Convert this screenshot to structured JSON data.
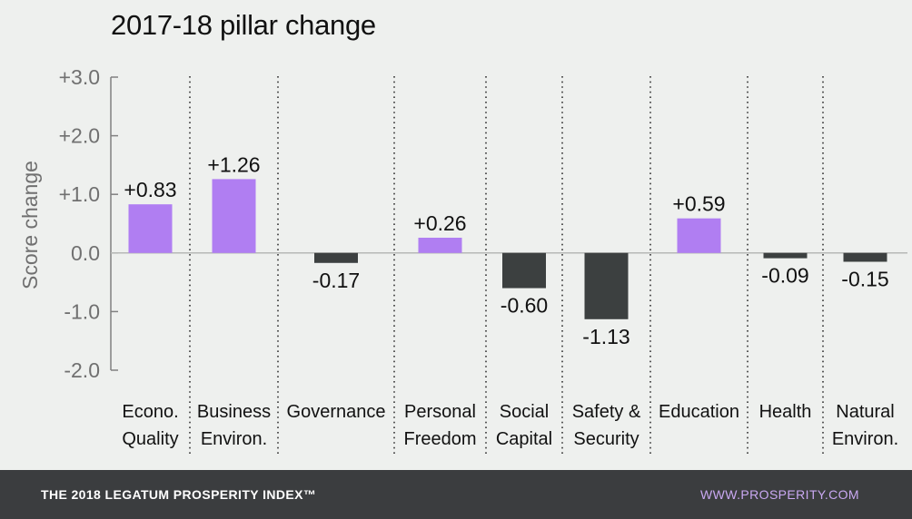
{
  "chart_data": {
    "type": "bar",
    "title": "2017-18 pillar change",
    "ylabel": "Score change",
    "ylim": [
      -2.0,
      3.0
    ],
    "yticks": [
      "+3.0",
      "+2.0",
      "+1.0",
      "0.0",
      "-1.0",
      "-2.0"
    ],
    "yticks_values": [
      3.0,
      2.0,
      1.0,
      0.0,
      -1.0,
      -2.0
    ],
    "categories": [
      [
        "Econo.",
        "Quality"
      ],
      [
        "Business",
        "Environ."
      ],
      [
        "Governance"
      ],
      [
        "Personal",
        "Freedom"
      ],
      [
        "Social",
        "Capital"
      ],
      [
        "Safety &",
        "Security"
      ],
      [
        "Education"
      ],
      [
        "Health"
      ],
      [
        "Natural",
        "Environ."
      ]
    ],
    "values": [
      0.83,
      1.26,
      -0.17,
      0.26,
      -0.6,
      -1.13,
      0.59,
      -0.09,
      -0.15
    ],
    "value_labels": [
      "+0.83",
      "+1.26",
      "-0.17",
      "+0.26",
      "-0.60",
      "-1.13",
      "+0.59",
      "-0.09",
      "-0.15"
    ],
    "colors": {
      "positive": "#b07ef2",
      "negative": "#3c4040"
    }
  },
  "footer": {
    "left": "THE 2018 LEGATUM PROSPERITY INDEX™",
    "right": "WWW.PROSPERITY.COM"
  }
}
